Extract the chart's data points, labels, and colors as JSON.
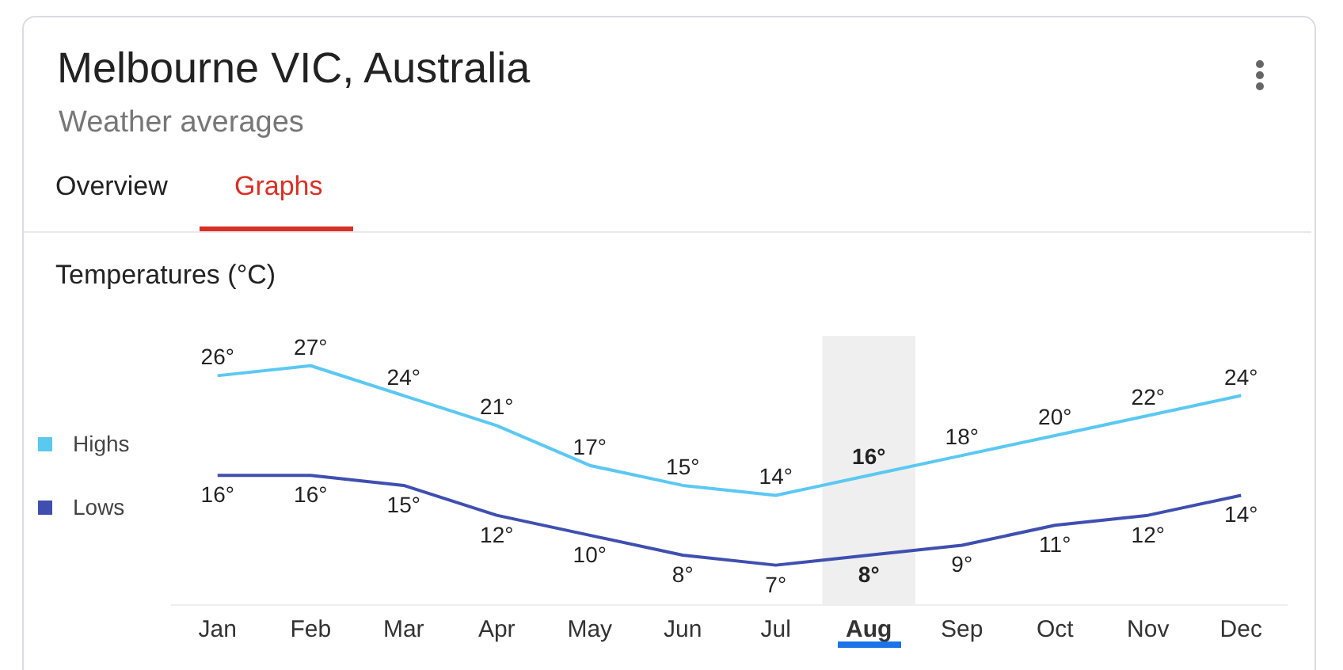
{
  "chart_data": {
    "type": "line",
    "title": "Melbourne VIC, Australia",
    "subtitle": "Weather averages",
    "ylabel": "Temperatures (°C)",
    "annotations": [
      "Overview",
      "Graphs"
    ],
    "categories": [
      "Jan",
      "Feb",
      "Mar",
      "Apr",
      "May",
      "Jun",
      "Jul",
      "Aug",
      "Sep",
      "Oct",
      "Nov",
      "Dec"
    ],
    "series": [
      {
        "name": "Highs",
        "color": "#5bc8f2",
        "values": [
          26,
          27,
          24,
          21,
          17,
          15,
          14,
          16,
          18,
          20,
          22,
          24
        ],
        "value_labels": [
          "26°",
          "27°",
          "24°",
          "21°",
          "17°",
          "15°",
          "14°",
          "16°",
          "18°",
          "20°",
          "22°",
          "24°"
        ]
      },
      {
        "name": "Lows",
        "color": "#3f4fb0",
        "values": [
          16,
          16,
          15,
          12,
          10,
          8,
          7,
          8,
          9,
          11,
          12,
          14
        ],
        "value_labels": [
          "16°",
          "16°",
          "15°",
          "12°",
          "10°",
          "8°",
          "7°",
          "8°",
          "9°",
          "11°",
          "12°",
          "14°"
        ]
      }
    ],
    "bands": [
      {
        "axis": "x",
        "from": "Aug",
        "to": "Aug",
        "color": "#efefef"
      }
    ],
    "legend": "left",
    "grid": false,
    "marker": "none",
    "line_style": "solid"
  }
}
